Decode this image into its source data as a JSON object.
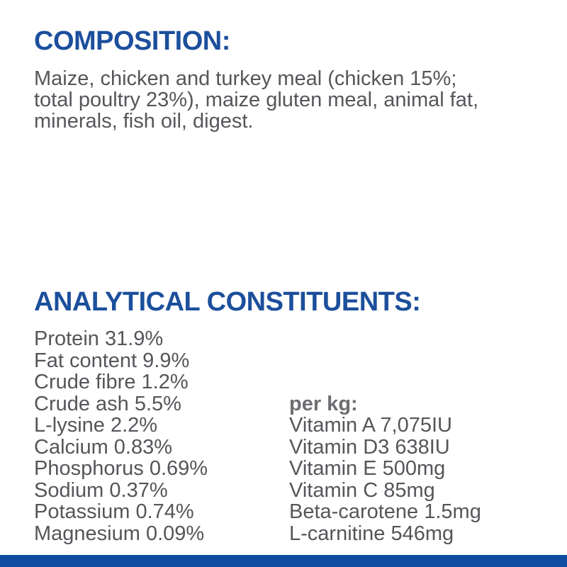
{
  "page": {
    "background_color": "#ffffff",
    "heading_color": "#1c4f9c",
    "text_color": "#55565a",
    "bottom_bar_color": "#0e4d9f"
  },
  "composition": {
    "heading": "COMPOSITION:",
    "lines": [
      "Maize, chicken and turkey meal (chicken 15%;",
      "total poultry 23%), maize gluten meal, animal fat,",
      "minerals, fish oil, digest."
    ]
  },
  "analytical": {
    "heading": "ANALYTICAL CONSTITUENTS:",
    "constituents": [
      "Protein 31.9%",
      "Fat content 9.9%",
      "Crude fibre 1.2%",
      "Crude ash 5.5%",
      "L-lysine 2.2%",
      "Calcium 0.83%",
      "Phosphorus 0.69%",
      "Sodium 0.37%",
      "Potassium 0.74%",
      "Magnesium 0.09%"
    ],
    "per_kg": {
      "label": "per kg:",
      "items": [
        "Vitamin A 7,075IU",
        "Vitamin D3 638IU",
        "Vitamin E 500mg",
        "Vitamin C 85mg",
        "Beta-carotene 1.5mg",
        "L-carnitine 546mg"
      ]
    }
  }
}
